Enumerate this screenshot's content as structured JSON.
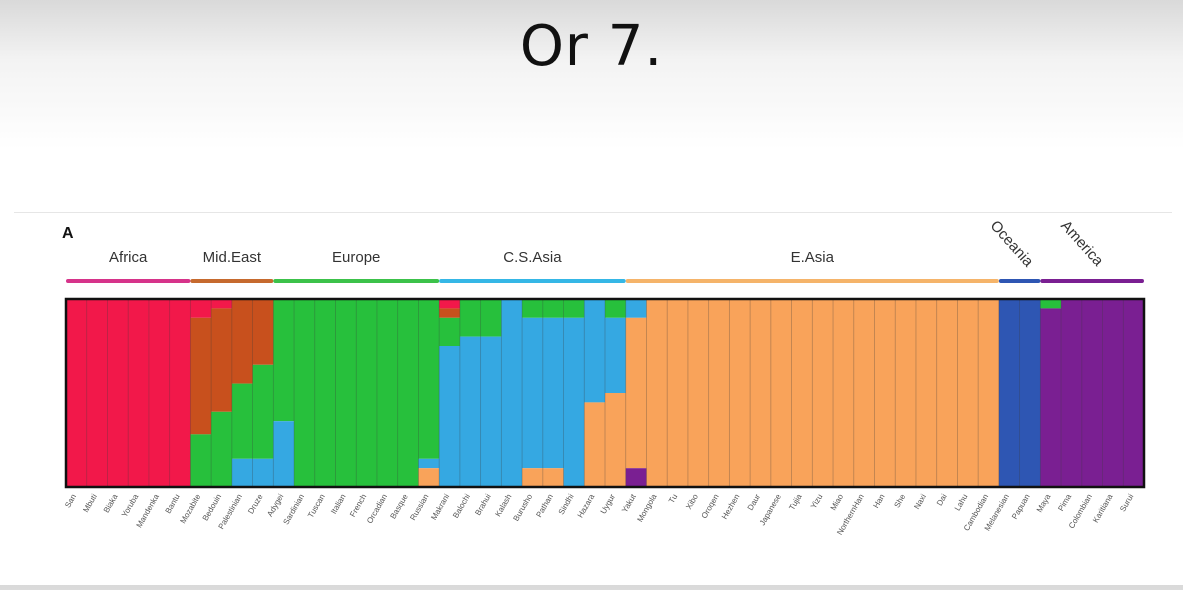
{
  "slide": {
    "title": "Or 7."
  },
  "chart_data": {
    "type": "bar",
    "subtype": "stacked-100-percent admixture (structure) plot",
    "panel_label": "A",
    "k": 7,
    "component_colors": {
      "africa": "#f2184a",
      "mid_east": "#c8501d",
      "europe": "#27c03c",
      "cs_asia": "#35a8e2",
      "e_asia": "#f9a35a",
      "oceania": "#2e56b3",
      "america": "#7a1f92"
    },
    "regions": [
      {
        "name": "Africa",
        "color": "#d6338a"
      },
      {
        "name": "Mid.East",
        "color": "#c66a2e"
      },
      {
        "name": "Europe",
        "color": "#3cc24a"
      },
      {
        "name": "C.S.Asia",
        "color": "#35b7e6"
      },
      {
        "name": "E.Asia",
        "color": "#f5b46a"
      },
      {
        "name": "Oceania",
        "color": "#2e56b3"
      },
      {
        "name": "America",
        "color": "#7a1f92"
      }
    ],
    "populations": [
      {
        "name": "San",
        "region": "Africa",
        "p": {
          "africa": 1.0
        }
      },
      {
        "name": "Mbuti",
        "region": "Africa",
        "p": {
          "africa": 1.0
        }
      },
      {
        "name": "Biaka",
        "region": "Africa",
        "p": {
          "africa": 1.0
        }
      },
      {
        "name": "Yoruba",
        "region": "Africa",
        "p": {
          "africa": 1.0
        }
      },
      {
        "name": "Mandenka",
        "region": "Africa",
        "p": {
          "africa": 1.0
        }
      },
      {
        "name": "Bantu",
        "region": "Africa",
        "p": {
          "africa": 1.0
        }
      },
      {
        "name": "Mozabite",
        "region": "Mid.East",
        "p": {
          "africa": 0.1,
          "mid_east": 0.62,
          "europe": 0.28
        }
      },
      {
        "name": "Bedouin",
        "region": "Mid.East",
        "p": {
          "africa": 0.05,
          "mid_east": 0.55,
          "europe": 0.4
        }
      },
      {
        "name": "Palestinian",
        "region": "Mid.East",
        "p": {
          "mid_east": 0.45,
          "europe": 0.4,
          "cs_asia": 0.15
        }
      },
      {
        "name": "Druze",
        "region": "Mid.East",
        "p": {
          "mid_east": 0.35,
          "europe": 0.5,
          "cs_asia": 0.15
        }
      },
      {
        "name": "Adygei",
        "region": "Europe",
        "p": {
          "europe": 0.65,
          "cs_asia": 0.35
        }
      },
      {
        "name": "Sardinian",
        "region": "Europe",
        "p": {
          "europe": 1.0
        }
      },
      {
        "name": "Tuscan",
        "region": "Europe",
        "p": {
          "europe": 1.0
        }
      },
      {
        "name": "Italian",
        "region": "Europe",
        "p": {
          "europe": 1.0
        }
      },
      {
        "name": "French",
        "region": "Europe",
        "p": {
          "europe": 1.0
        }
      },
      {
        "name": "Orcadian",
        "region": "Europe",
        "p": {
          "europe": 1.0
        }
      },
      {
        "name": "Basque",
        "region": "Europe",
        "p": {
          "europe": 1.0
        }
      },
      {
        "name": "Russian",
        "region": "Europe",
        "p": {
          "europe": 0.85,
          "cs_asia": 0.05,
          "e_asia": 0.1
        }
      },
      {
        "name": "Makrani",
        "region": "C.S.Asia",
        "p": {
          "africa": 0.05,
          "mid_east": 0.05,
          "europe": 0.15,
          "cs_asia": 0.75
        }
      },
      {
        "name": "Balochi",
        "region": "C.S.Asia",
        "p": {
          "europe": 0.2,
          "cs_asia": 0.8
        }
      },
      {
        "name": "Brahui",
        "region": "C.S.Asia",
        "p": {
          "europe": 0.2,
          "cs_asia": 0.8
        }
      },
      {
        "name": "Kalash",
        "region": "C.S.Asia",
        "p": {
          "cs_asia": 1.0
        }
      },
      {
        "name": "Burusho",
        "region": "C.S.Asia",
        "p": {
          "europe": 0.1,
          "cs_asia": 0.8,
          "e_asia": 0.1
        }
      },
      {
        "name": "Pathan",
        "region": "C.S.Asia",
        "p": {
          "europe": 0.1,
          "cs_asia": 0.8,
          "e_asia": 0.1
        }
      },
      {
        "name": "Sindhi",
        "region": "C.S.Asia",
        "p": {
          "europe": 0.1,
          "cs_asia": 0.9
        }
      },
      {
        "name": "Hazara",
        "region": "C.S.Asia",
        "p": {
          "cs_asia": 0.55,
          "e_asia": 0.45
        }
      },
      {
        "name": "Uygur",
        "region": "C.S.Asia",
        "p": {
          "europe": 0.1,
          "cs_asia": 0.4,
          "e_asia": 0.5
        }
      },
      {
        "name": "Yakut",
        "region": "E.Asia",
        "p": {
          "cs_asia": 0.1,
          "e_asia": 0.8,
          "america": 0.1
        }
      },
      {
        "name": "Mongola",
        "region": "E.Asia",
        "p": {
          "e_asia": 1.0
        }
      },
      {
        "name": "Tu",
        "region": "E.Asia",
        "p": {
          "e_asia": 1.0
        }
      },
      {
        "name": "Xibo",
        "region": "E.Asia",
        "p": {
          "e_asia": 1.0
        }
      },
      {
        "name": "Oroqen",
        "region": "E.Asia",
        "p": {
          "e_asia": 1.0
        }
      },
      {
        "name": "Hezhen",
        "region": "E.Asia",
        "p": {
          "e_asia": 1.0
        }
      },
      {
        "name": "Daur",
        "region": "E.Asia",
        "p": {
          "e_asia": 1.0
        }
      },
      {
        "name": "Japanese",
        "region": "E.Asia",
        "p": {
          "e_asia": 1.0
        }
      },
      {
        "name": "Tujia",
        "region": "E.Asia",
        "p": {
          "e_asia": 1.0
        }
      },
      {
        "name": "Yizu",
        "region": "E.Asia",
        "p": {
          "e_asia": 1.0
        }
      },
      {
        "name": "Miao",
        "region": "E.Asia",
        "p": {
          "e_asia": 1.0
        }
      },
      {
        "name": "NorthernHan",
        "region": "E.Asia",
        "p": {
          "e_asia": 1.0
        }
      },
      {
        "name": "Han",
        "region": "E.Asia",
        "p": {
          "e_asia": 1.0
        }
      },
      {
        "name": "She",
        "region": "E.Asia",
        "p": {
          "e_asia": 1.0
        }
      },
      {
        "name": "Naxi",
        "region": "E.Asia",
        "p": {
          "e_asia": 1.0
        }
      },
      {
        "name": "Dai",
        "region": "E.Asia",
        "p": {
          "e_asia": 1.0
        }
      },
      {
        "name": "Lahu",
        "region": "E.Asia",
        "p": {
          "e_asia": 1.0
        }
      },
      {
        "name": "Cambodian",
        "region": "E.Asia",
        "p": {
          "e_asia": 1.0
        }
      },
      {
        "name": "Melanesian",
        "region": "Oceania",
        "p": {
          "oceania": 1.0
        }
      },
      {
        "name": "Papuan",
        "region": "Oceania",
        "p": {
          "oceania": 1.0
        }
      },
      {
        "name": "Maya",
        "region": "America",
        "p": {
          "europe": 0.05,
          "america": 0.95
        }
      },
      {
        "name": "Pima",
        "region": "America",
        "p": {
          "america": 1.0
        }
      },
      {
        "name": "Colombian",
        "region": "America",
        "p": {
          "america": 1.0
        }
      },
      {
        "name": "Karitiana",
        "region": "America",
        "p": {
          "america": 1.0
        }
      },
      {
        "name": "Surui",
        "region": "America",
        "p": {
          "america": 1.0
        }
      }
    ],
    "xlabel": "",
    "ylabel": "",
    "ylim": [
      0,
      1
    ],
    "grid": false,
    "legend": "none"
  }
}
